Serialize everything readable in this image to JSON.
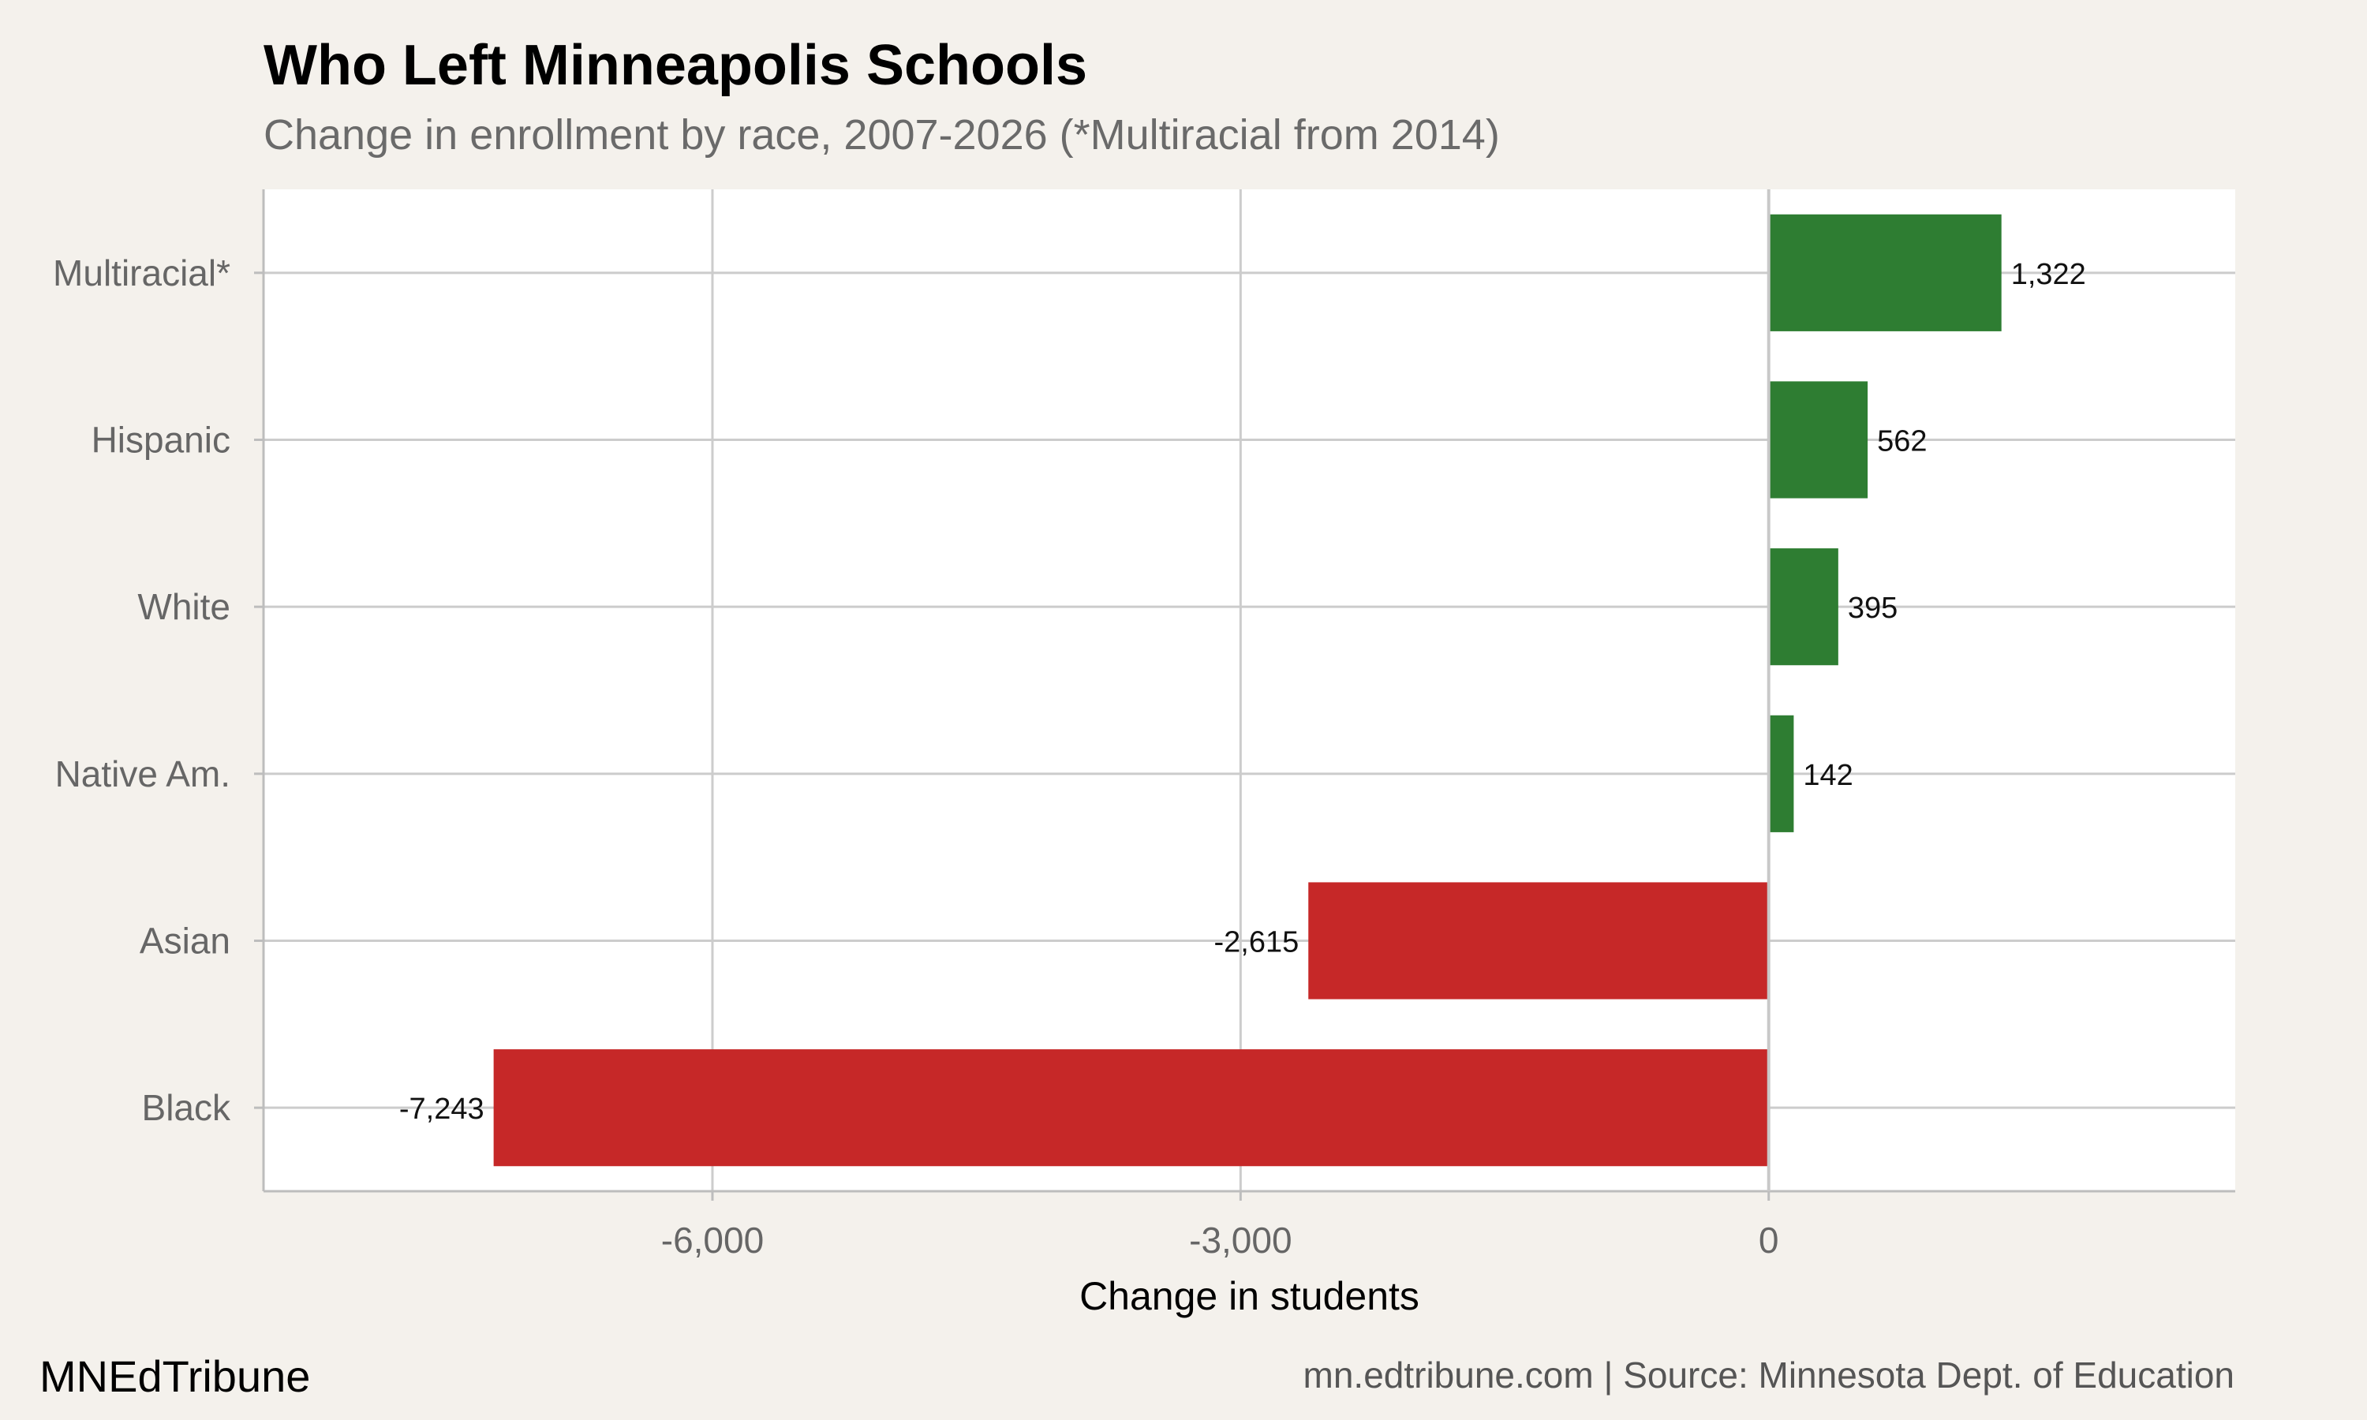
{
  "header": {
    "title": "Who Left Minneapolis Schools",
    "subtitle": "Change in enrollment by race, 2007-2026 (*Multiracial from 2014)"
  },
  "footer": {
    "brand": "MNEdTribune",
    "source": "mn.edtribune.com | Source: Minnesota Dept. of Education"
  },
  "chart_data": {
    "type": "bar",
    "orientation": "horizontal",
    "title": "Who Left Minneapolis Schools",
    "subtitle": "Change in enrollment by race, 2007-2026 (*Multiracial from 2014)",
    "xlabel": "Change in students",
    "ylabel": "",
    "categories": [
      "Multiracial*",
      "Hispanic",
      "White",
      "Native Am.",
      "Asian",
      "Black"
    ],
    "values": [
      1322,
      562,
      395,
      142,
      -2615,
      -7243
    ],
    "data_labels": [
      "1,322",
      "562",
      "395",
      "142",
      "-2,615",
      "-7,243"
    ],
    "xlim": [
      -8550,
      2650
    ],
    "x_ticks": [
      -6000,
      -3000,
      0
    ],
    "x_tick_labels": [
      "-6,000",
      "-3,000",
      "0"
    ],
    "grid": true,
    "legend": "none",
    "colors": {
      "positive": "#2e7d32",
      "negative": "#c62828",
      "panel": "#ffffff",
      "background": "#f4f1ec",
      "grid": "#cccccc",
      "axis_text": "#666666"
    }
  }
}
